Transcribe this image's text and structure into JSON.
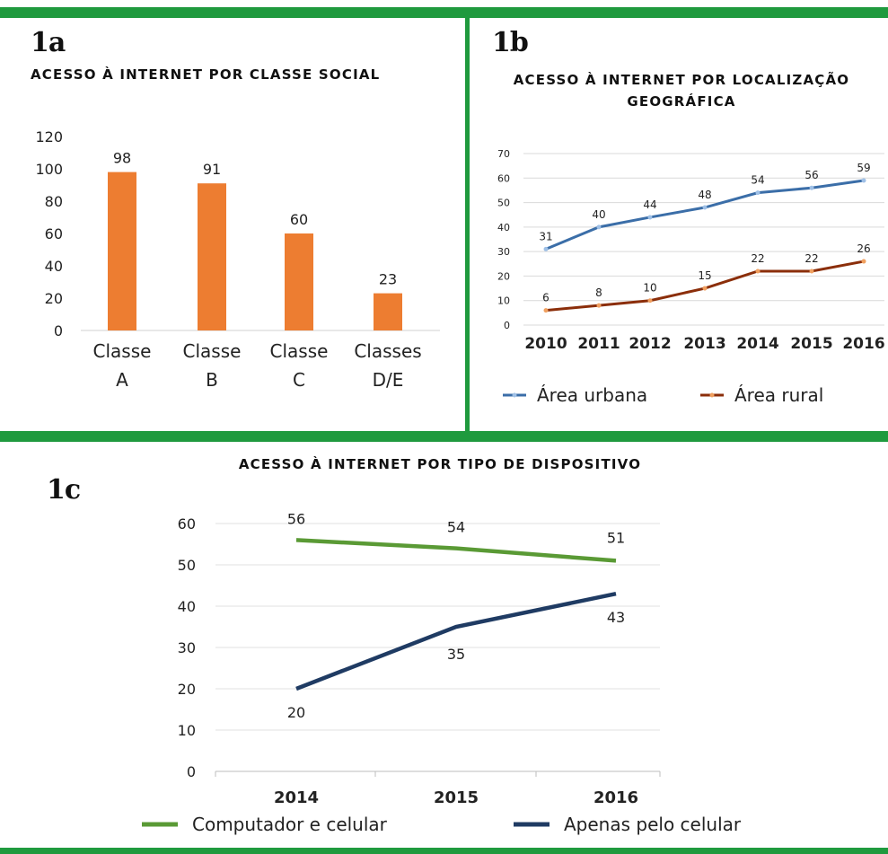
{
  "colors": {
    "frame_green": "#1f9a3e",
    "bar_orange": "#ed7d31",
    "urban_blue": "#3b6ea8",
    "rural_brown": "#8b2e0a",
    "computer_green": "#5a9a35",
    "mobile_navy": "#1f3b63"
  },
  "panel_a": {
    "label": "1a",
    "title": "ACESSO À INTERNET POR CLASSE SOCIAL",
    "chart_data": {
      "type": "bar",
      "categories": [
        [
          "Classe",
          "A"
        ],
        [
          "Classe",
          "B"
        ],
        [
          "Classe",
          "C"
        ],
        [
          "Classes",
          "D/E"
        ]
      ],
      "values": [
        98,
        91,
        60,
        23
      ],
      "ylim": [
        0,
        120
      ],
      "yticks": [
        0,
        20,
        40,
        60,
        80,
        100,
        120
      ],
      "grid": false
    }
  },
  "panel_b": {
    "label": "1b",
    "title_lines": [
      "ACESSO À INTERNET POR LOCALIZAÇÃO",
      "GEOGRÁFICA"
    ],
    "chart_data": {
      "type": "line",
      "x": [
        "2010",
        "2011",
        "2012",
        "2013",
        "2014",
        "2015",
        "2016"
      ],
      "series": [
        {
          "name": "Área urbana",
          "values": [
            31,
            40,
            44,
            48,
            54,
            56,
            59
          ]
        },
        {
          "name": "Área rural",
          "values": [
            6,
            8,
            10,
            15,
            22,
            22,
            26
          ]
        }
      ],
      "ylim": [
        0,
        70
      ],
      "yticks": [
        0,
        10,
        20,
        30,
        40,
        50,
        60,
        70
      ],
      "grid": true,
      "legend_position": "bottom"
    }
  },
  "panel_c": {
    "label": "1c",
    "title": "ACESSO À INTERNET POR TIPO DE DISPOSITIVO",
    "chart_data": {
      "type": "line",
      "x": [
        "2014",
        "2015",
        "2016"
      ],
      "series": [
        {
          "name": "Computador e celular",
          "values": [
            56,
            54,
            51
          ]
        },
        {
          "name": "Apenas pelo celular",
          "values": [
            20,
            35,
            43
          ]
        }
      ],
      "ylim": [
        0,
        60
      ],
      "yticks": [
        0,
        10,
        20,
        30,
        40,
        50,
        60
      ],
      "grid": true,
      "legend_position": "bottom"
    }
  }
}
